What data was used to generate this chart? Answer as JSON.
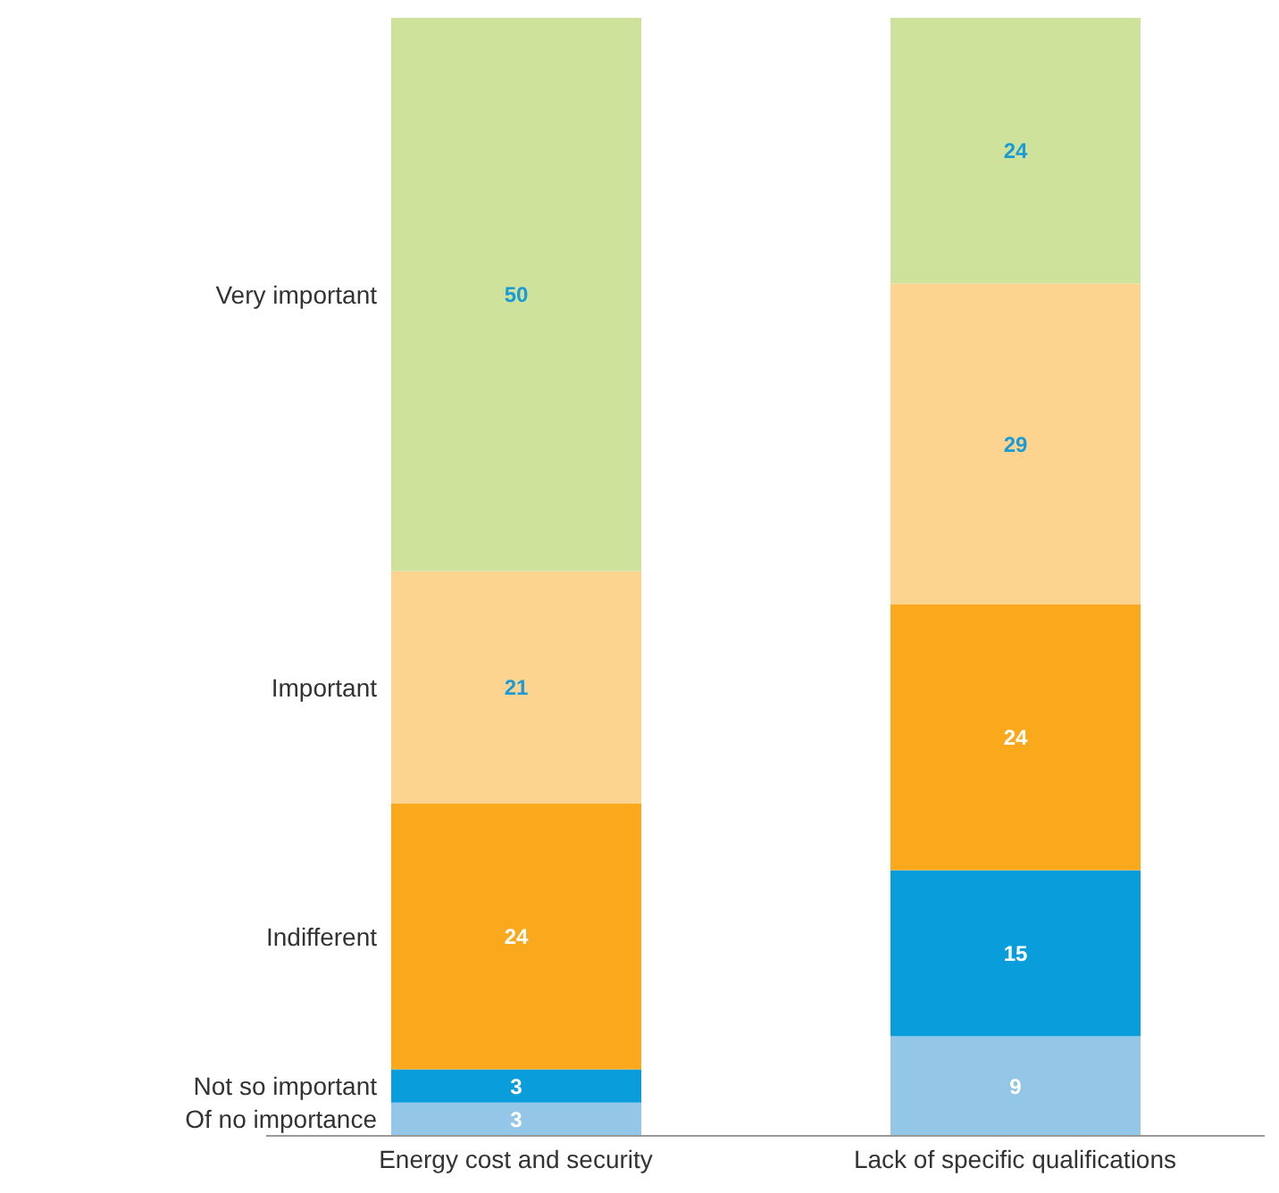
{
  "chart_data": {
    "type": "bar",
    "stacked": true,
    "data_labels": true,
    "legend": false,
    "grid": false,
    "categories": [
      "Energy cost and security",
      "Lack of specific qualifications"
    ],
    "series": [
      {
        "name": "Of no importance",
        "color": "#94c6e8",
        "values": [
          3,
          9
        ]
      },
      {
        "name": "Not so important",
        "color": "#0a9ddb",
        "values": [
          3,
          15
        ]
      },
      {
        "name": "Indifferent",
        "color": "#f9a91b",
        "values": [
          24,
          24
        ]
      },
      {
        "name": "Important",
        "color": "#fcd490",
        "values": [
          21,
          29
        ]
      },
      {
        "name": "Very important",
        "color": "#cfe29c",
        "values": [
          50,
          24
        ]
      }
    ]
  }
}
